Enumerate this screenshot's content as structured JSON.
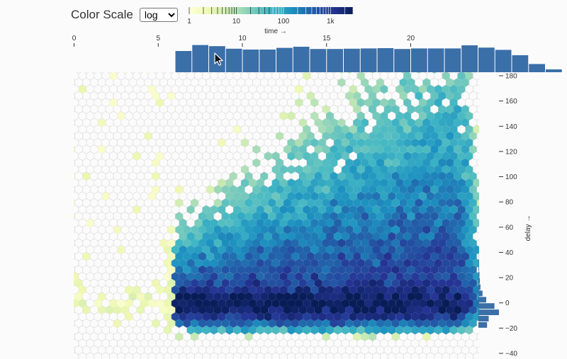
{
  "controls": {
    "color_scale_label": "Color Scale",
    "color_scale_value": "log",
    "color_scale_options": [
      "log"
    ]
  },
  "legend": {
    "label": "time →",
    "ticks": [
      "1",
      "10",
      "100",
      "1k"
    ],
    "tick_values": [
      1,
      10,
      100,
      1000
    ],
    "domain": [
      1,
      3000
    ],
    "colors": [
      "#ffffd9",
      "#edf8b1",
      "#c7e9b4",
      "#7fcdbb",
      "#41b6c4",
      "#1d91c0",
      "#225ea8",
      "#253494",
      "#081d58"
    ]
  },
  "chart_data": {
    "type": "heatmap",
    "title": "",
    "xlabel": "time →",
    "ylabel": "delay →",
    "x_ticks": [
      0,
      5,
      10,
      15,
      20
    ],
    "y_ticks": [
      -40,
      -20,
      0,
      20,
      40,
      60,
      80,
      100,
      120,
      140,
      160,
      180
    ],
    "xlim": [
      0,
      24
    ],
    "ylim": [
      -40,
      180
    ],
    "color_scale": "log",
    "grid": false,
    "time_histogram": {
      "bin_start": 6,
      "bin_width": 1,
      "values": [
        0.75,
        0.96,
        0.92,
        0.83,
        0.8,
        0.8,
        0.86,
        0.9,
        0.82,
        0.82,
        0.83,
        0.84,
        0.85,
        0.82,
        0.84,
        0.84,
        0.84,
        0.95,
        0.87,
        0.79,
        0.6,
        0.29,
        0.1
      ]
    },
    "delay_histogram": {
      "bin_start": -20,
      "bin_width": 5,
      "values": [
        0.42,
        0.5,
        1.0,
        0.78,
        0.38,
        0.2,
        0.1,
        0.07,
        0.05,
        0.03,
        0.02,
        0.01
      ]
    }
  }
}
